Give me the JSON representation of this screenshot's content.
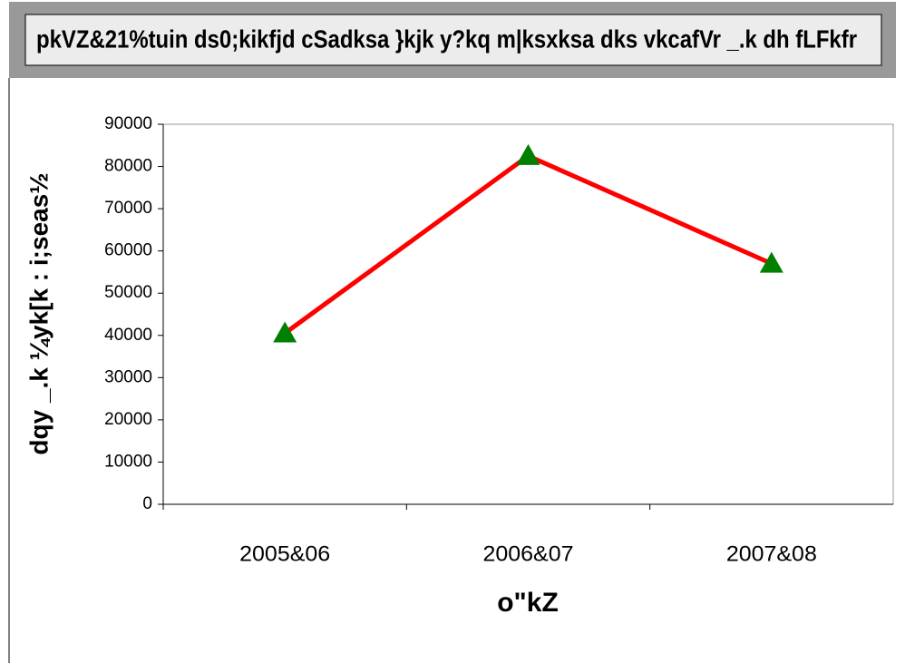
{
  "chart_data": {
    "type": "line",
    "title": "pkVZ&21%tuin ds0;kikfjd cSadksa }kjk y?kq m|ksxksa dks vkcafVr _.k dh fLFkfr",
    "x_label": "o\"kZ",
    "y_label": "dqy _.k ¼yk[k : i;seas½",
    "categories": [
      "2005&06",
      "2006&07",
      "2007&08"
    ],
    "series": [
      {
        "name": "_.k",
        "color": "#ff0000",
        "marker_color": "#008000",
        "values": [
          40500,
          82500,
          57000
        ]
      }
    ],
    "ylim": [
      0,
      90000
    ],
    "yticks": [
      0,
      10000,
      20000,
      30000,
      40000,
      50000,
      60000,
      70000,
      80000,
      90000
    ]
  }
}
